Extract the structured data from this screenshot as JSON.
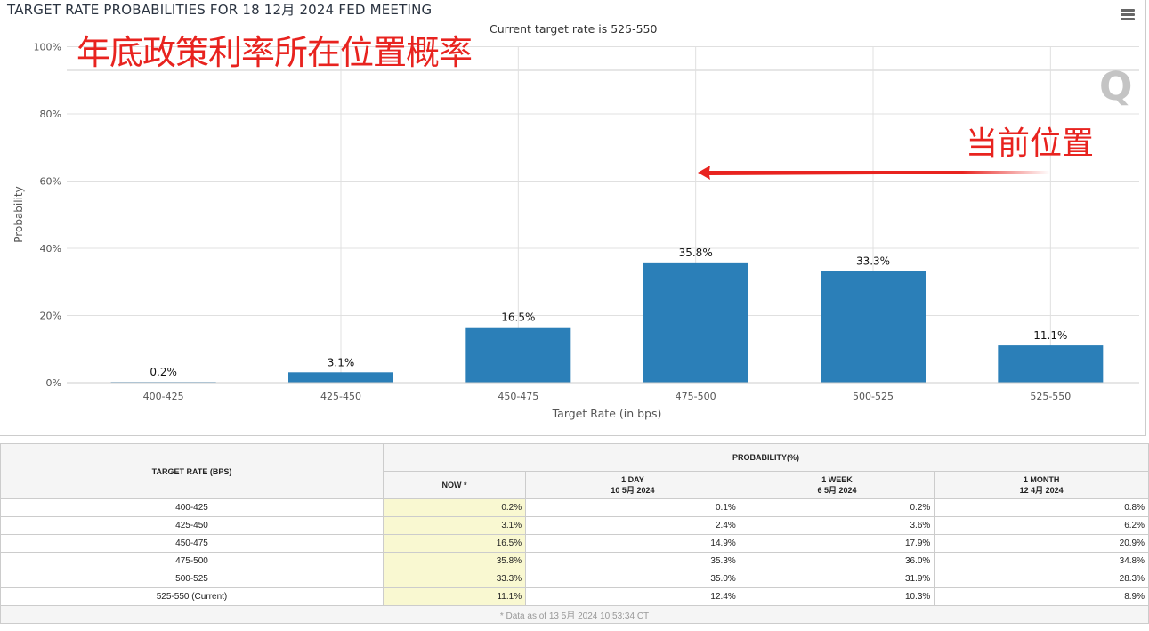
{
  "chart_data": {
    "type": "bar",
    "title": "TARGET RATE PROBABILITIES FOR 18 12月 2024 FED MEETING",
    "subtitle": "Current target rate is 525-550",
    "categories": [
      "400-425",
      "425-450",
      "450-475",
      "475-500",
      "500-525",
      "525-550"
    ],
    "values": [
      0.2,
      3.1,
      16.5,
      35.8,
      33.3,
      11.1
    ],
    "data_labels": [
      "0.2%",
      "3.1%",
      "16.5%",
      "35.8%",
      "33.3%",
      "11.1%"
    ],
    "xlabel": "Target Rate (in bps)",
    "ylabel": "Probability",
    "ylim": [
      0,
      100
    ],
    "yticks": [
      "0%",
      "20%",
      "40%",
      "60%",
      "80%",
      "100%"
    ],
    "grid": true,
    "bar_color": "#2b7fb8"
  },
  "annotations": {
    "headline": "年底政策利率所在位置概率",
    "current_position": "当前位置",
    "arrow_color": "#e8231f"
  },
  "logo_text": "Q",
  "menu_icon": "hamburger-menu-icon",
  "table": {
    "header_rate": "TARGET RATE (BPS)",
    "header_prob": "PROBABILITY(%)",
    "cols": [
      {
        "label": "NOW *",
        "date": ""
      },
      {
        "label": "1 DAY",
        "date": "10 5月 2024"
      },
      {
        "label": "1 WEEK",
        "date": "6 5月 2024"
      },
      {
        "label": "1 MONTH",
        "date": "12 4月 2024"
      }
    ],
    "rows": [
      {
        "rate": "400-425",
        "v": [
          "0.2%",
          "0.1%",
          "0.2%",
          "0.8%"
        ]
      },
      {
        "rate": "425-450",
        "v": [
          "3.1%",
          "2.4%",
          "3.6%",
          "6.2%"
        ]
      },
      {
        "rate": "450-475",
        "v": [
          "16.5%",
          "14.9%",
          "17.9%",
          "20.9%"
        ]
      },
      {
        "rate": "475-500",
        "v": [
          "35.8%",
          "35.3%",
          "36.0%",
          "34.8%"
        ]
      },
      {
        "rate": "500-525",
        "v": [
          "33.3%",
          "35.0%",
          "31.9%",
          "28.3%"
        ]
      },
      {
        "rate": "525-550 (Current)",
        "v": [
          "11.1%",
          "12.4%",
          "10.3%",
          "8.9%"
        ]
      }
    ],
    "footnote": "* Data as of 13 5月 2024 10:53:34 CT"
  }
}
